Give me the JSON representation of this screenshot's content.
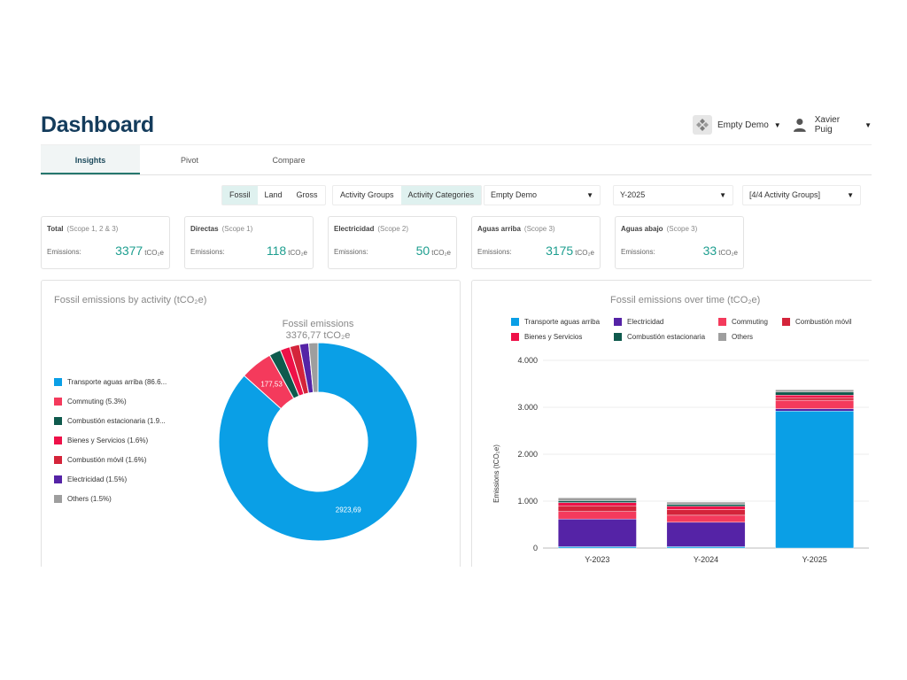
{
  "header": {
    "title": "Dashboard",
    "org_name": "Empty Demo",
    "user_name": "Xavier Puig"
  },
  "tabs": [
    {
      "label": "Insights",
      "active": true
    },
    {
      "label": "Pivot",
      "active": false
    },
    {
      "label": "Compare",
      "active": false
    }
  ],
  "filters": {
    "emission_type": {
      "options": [
        "Fossil",
        "Land",
        "Gross"
      ],
      "selected": "Fossil"
    },
    "grouping": {
      "options": [
        "Activity Groups",
        "Activity Categories"
      ],
      "selected": "Activity Categories"
    },
    "organization_select": "Empty Demo",
    "period_select": "Y-2025",
    "groups_select": "[4/4 Activity Groups]"
  },
  "kpis": [
    {
      "name": "Total",
      "scope": "(Scope 1, 2 & 3)",
      "label": "Emissions:",
      "value": "3377",
      "unit": "tCO₂e"
    },
    {
      "name": "Directas",
      "scope": "(Scope 1)",
      "label": "Emissions:",
      "value": "118",
      "unit": "tCO₂e"
    },
    {
      "name": "Electricidad",
      "scope": "(Scope 2)",
      "label": "Emissions:",
      "value": "50",
      "unit": "tCO₂e"
    },
    {
      "name": "Aguas arriba",
      "scope": "(Scope 3)",
      "label": "Emissions:",
      "value": "3175",
      "unit": "tCO₂e"
    },
    {
      "name": "Aguas abajo",
      "scope": "(Scope 3)",
      "label": "Emissions:",
      "value": "33",
      "unit": "tCO₂e"
    }
  ],
  "colors": {
    "accent": "#1d9e8f",
    "title": "#143c5c",
    "transporte": "#0a9fe6",
    "commuting": "#f43a5c",
    "combustion_estacionaria": "#0f5a4d",
    "bienes": "#ee1148",
    "combustion_movil": "#d4243a",
    "electricidad": "#5523a6",
    "others": "#9e9e9e"
  },
  "chart_data": [
    {
      "type": "pie",
      "panel_title": "Fossil emissions by activity (tCO₂e)",
      "title": "Fossil emissions",
      "subtitle": "3376,77 tCO₂e",
      "legend_placement": "left",
      "slices": [
        {
          "name": "Transporte aguas arriba (86.6...",
          "value": 2923.69,
          "label": "2923,69",
          "color": "#0a9fe6"
        },
        {
          "name": "Commuting (5.3%)",
          "value": 177.53,
          "label": "177,53",
          "color": "#f43a5c"
        },
        {
          "name": "Combustión estacionaria (1.9...",
          "value": 64.2,
          "label": "",
          "color": "#0f5a4d"
        },
        {
          "name": "Bienes y Servicios (1.6%)",
          "value": 54.0,
          "label": "",
          "color": "#ee1148"
        },
        {
          "name": "Combustión móvil (1.6%)",
          "value": 54.0,
          "label": "",
          "color": "#d4243a"
        },
        {
          "name": "Electricidad (1.5%)",
          "value": 50.6,
          "label": "",
          "color": "#5523a6"
        },
        {
          "name": "Others (1.5%)",
          "value": 50.6,
          "label": "",
          "color": "#9e9e9e"
        }
      ]
    },
    {
      "type": "bar",
      "stacked": true,
      "title": "Fossil emissions over time (tCO₂e)",
      "ylabel": "Emissions (tCO₂e)",
      "ylim": [
        0,
        4000
      ],
      "yticks": [
        "0",
        "1.000",
        "2.000",
        "3.000",
        "4.000"
      ],
      "ytick_values": [
        0,
        1000,
        2000,
        3000,
        4000
      ],
      "legend_placement": "top",
      "grid": true,
      "categories": [
        "Y-2023",
        "Y-2024",
        "Y-2025"
      ],
      "series": [
        {
          "name": "Transporte aguas arriba",
          "color": "#0a9fe6",
          "values": [
            30,
            30,
            2920
          ]
        },
        {
          "name": "Electricidad",
          "color": "#5523a6",
          "values": [
            590,
            520,
            50
          ]
        },
        {
          "name": "Commuting",
          "color": "#f43a5c",
          "values": [
            160,
            150,
            180
          ]
        },
        {
          "name": "Combustión móvil",
          "color": "#d4243a",
          "values": [
            120,
            120,
            55
          ]
        },
        {
          "name": "Bienes y Servicios",
          "color": "#ee1148",
          "values": [
            70,
            70,
            55
          ]
        },
        {
          "name": "Combustión estacionaria",
          "color": "#0f5a4d",
          "values": [
            40,
            40,
            64
          ]
        },
        {
          "name": "Others",
          "color": "#9e9e9e",
          "values": [
            60,
            50,
            50
          ]
        }
      ]
    }
  ]
}
